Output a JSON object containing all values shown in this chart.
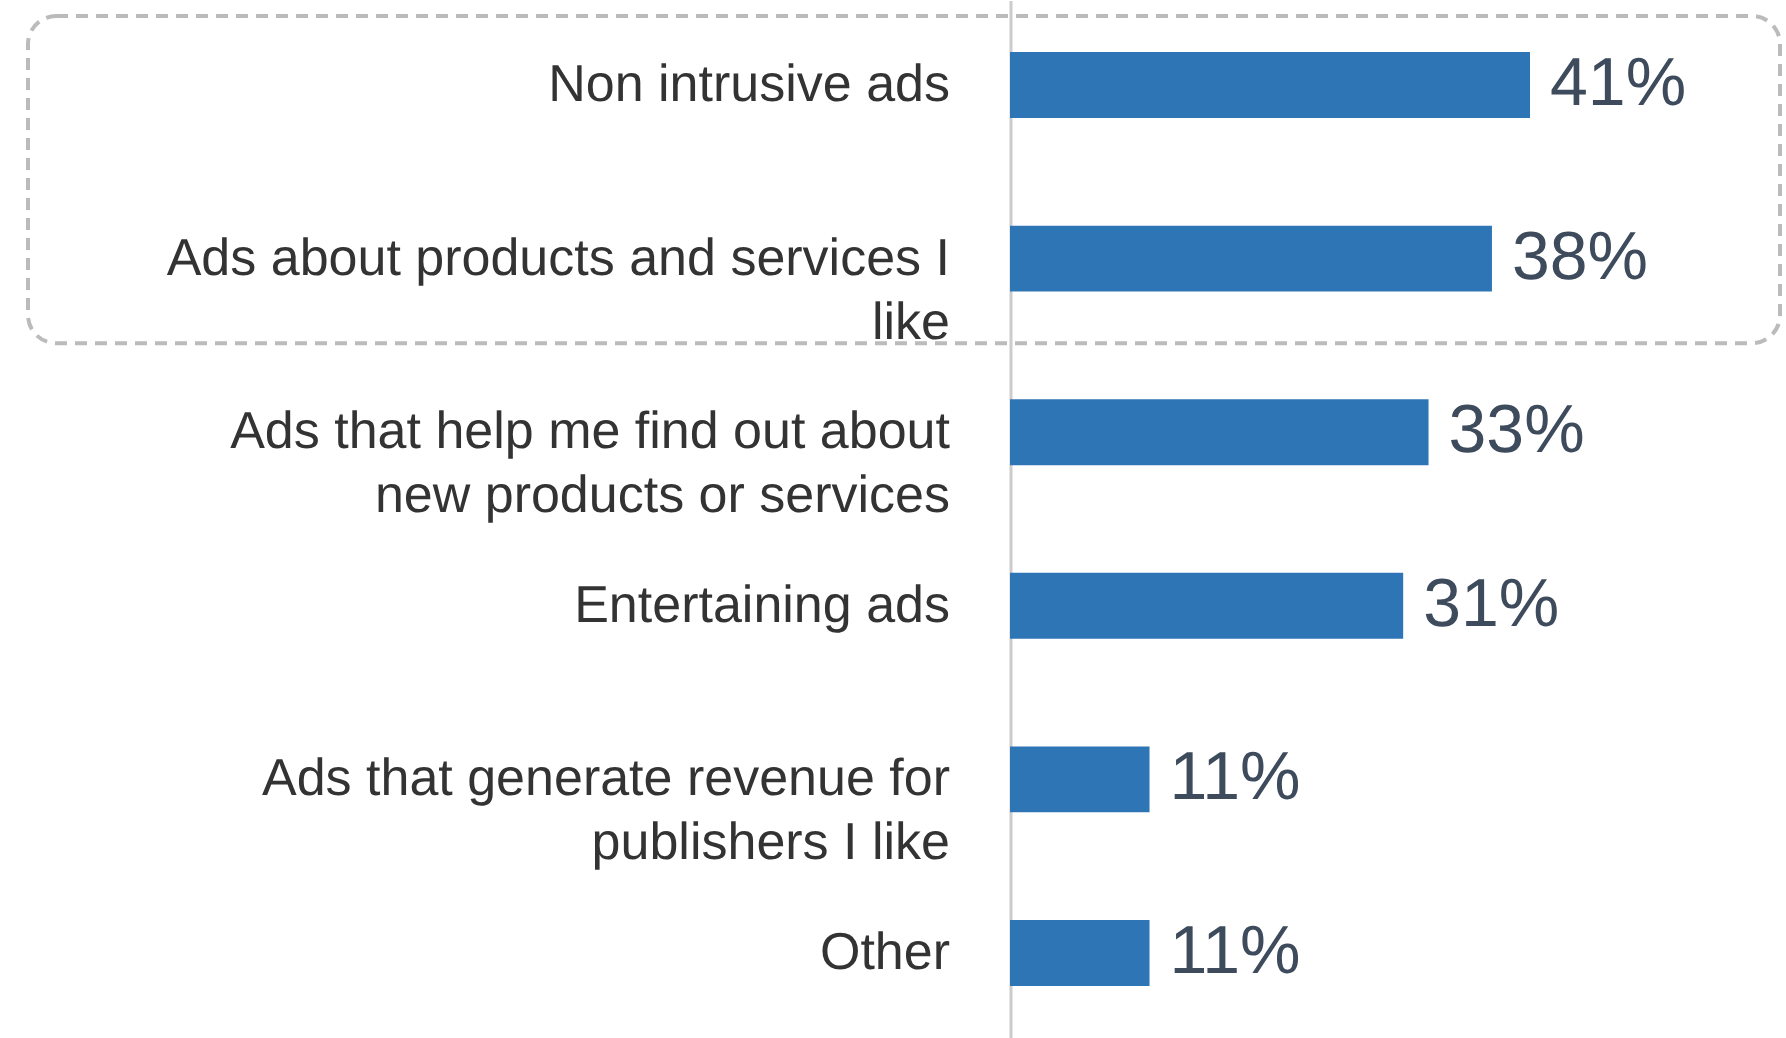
{
  "chart_data": {
    "type": "bar",
    "orientation": "horizontal",
    "categories": [
      "Non intrusive ads",
      "Ads about products and services I like",
      "Ads that help me find out about new products or services",
      "Entertaining ads",
      "Ads that generate revenue for publishers I like",
      "Other"
    ],
    "values": [
      41,
      38,
      33,
      31,
      11,
      11
    ],
    "value_labels": [
      "41%",
      "38%",
      "33%",
      "31%",
      "11%",
      "11%"
    ],
    "color": "#2e75b6",
    "tick_labels": "y",
    "grid": false
  }
}
